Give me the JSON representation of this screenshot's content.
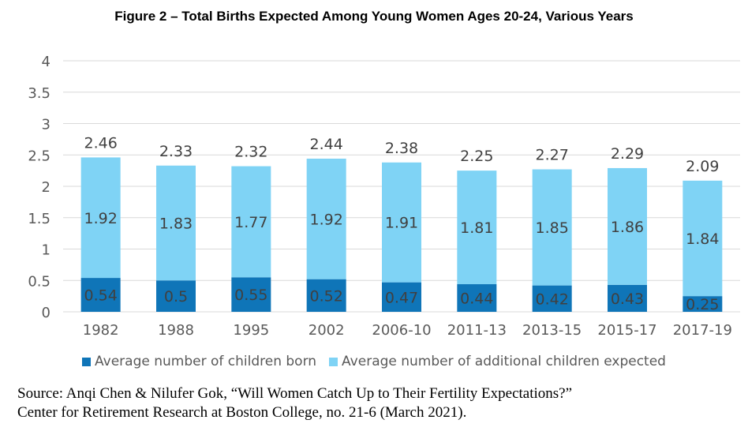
{
  "title": "Figure 2 – Total Births Expected Among Young Women Ages 20-24, Various Years",
  "source": {
    "line1": "Source: Anqi Chen & Nilufer Gok, “Will Women Catch Up to Their Fertility Expectations?”",
    "line2": "Center for Retirement Research at Boston College, no. 21-6 (March 2021)."
  },
  "colors": {
    "born": "#0F75B8",
    "expected": "#7FD3F5",
    "grid": "#D9D9D9"
  },
  "chart_data": {
    "type": "bar",
    "stacked": true,
    "categories": [
      "1982",
      "1988",
      "1995",
      "2002",
      "2006-10",
      "2011-13",
      "2013-15",
      "2015-17",
      "2017-19"
    ],
    "series": [
      {
        "name": "Average number of children born",
        "values": [
          0.54,
          0.5,
          0.55,
          0.52,
          0.47,
          0.44,
          0.42,
          0.43,
          0.25
        ]
      },
      {
        "name": "Average number of additional children expected",
        "values": [
          1.92,
          1.83,
          1.77,
          1.92,
          1.91,
          1.81,
          1.85,
          1.86,
          1.84
        ]
      }
    ],
    "totals": [
      2.46,
      2.33,
      2.32,
      2.44,
      2.38,
      2.25,
      2.27,
      2.29,
      2.09
    ],
    "series_labels": [
      [
        "0.54",
        "0.5",
        "0.55",
        "0.52",
        "0.47",
        "0.44",
        "0.42",
        "0.43",
        "0.25"
      ],
      [
        "1.92",
        "1.83",
        "1.77",
        "1.92",
        "1.91",
        "1.81",
        "1.85",
        "1.86",
        "1.84"
      ]
    ],
    "total_labels": [
      "2.46",
      "2.33",
      "2.32",
      "2.44",
      "2.38",
      "2.25",
      "2.27",
      "2.29",
      "2.09"
    ],
    "yticks": [
      "0",
      "0.5",
      "1",
      "1.5",
      "2",
      "2.5",
      "3",
      "3.5",
      "4"
    ],
    "ylim": [
      0,
      4
    ],
    "grid": true,
    "legend_position": "bottom"
  }
}
